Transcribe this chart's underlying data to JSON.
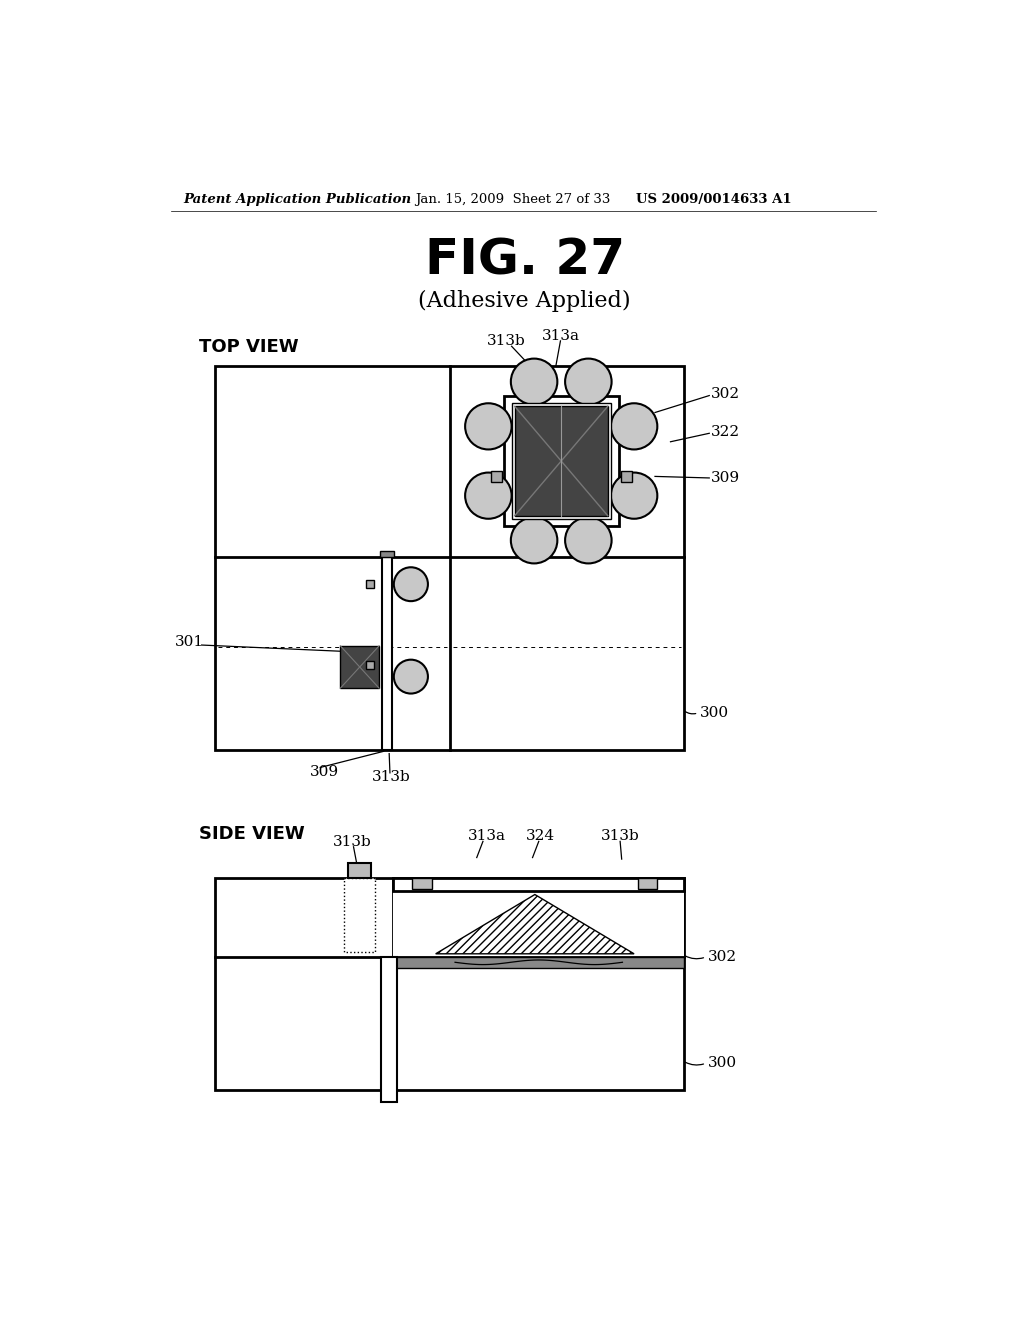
{
  "bg_color": "#ffffff",
  "header_left": "Patent Application Publication",
  "header_mid": "Jan. 15, 2009  Sheet 27 of 33",
  "header_right": "US 2009/0014633 A1",
  "fig_title": "FIG. 27",
  "fig_subtitle": "(Adhesive Applied)",
  "top_view_label": "TOP VIEW",
  "side_view_label": "SIDE VIEW",
  "gray_circle": "#c8c8c8",
  "dark_chip": "#444444",
  "med_gray": "#888888",
  "light_gray": "#bbbbbb",
  "dark_gray": "#555555"
}
